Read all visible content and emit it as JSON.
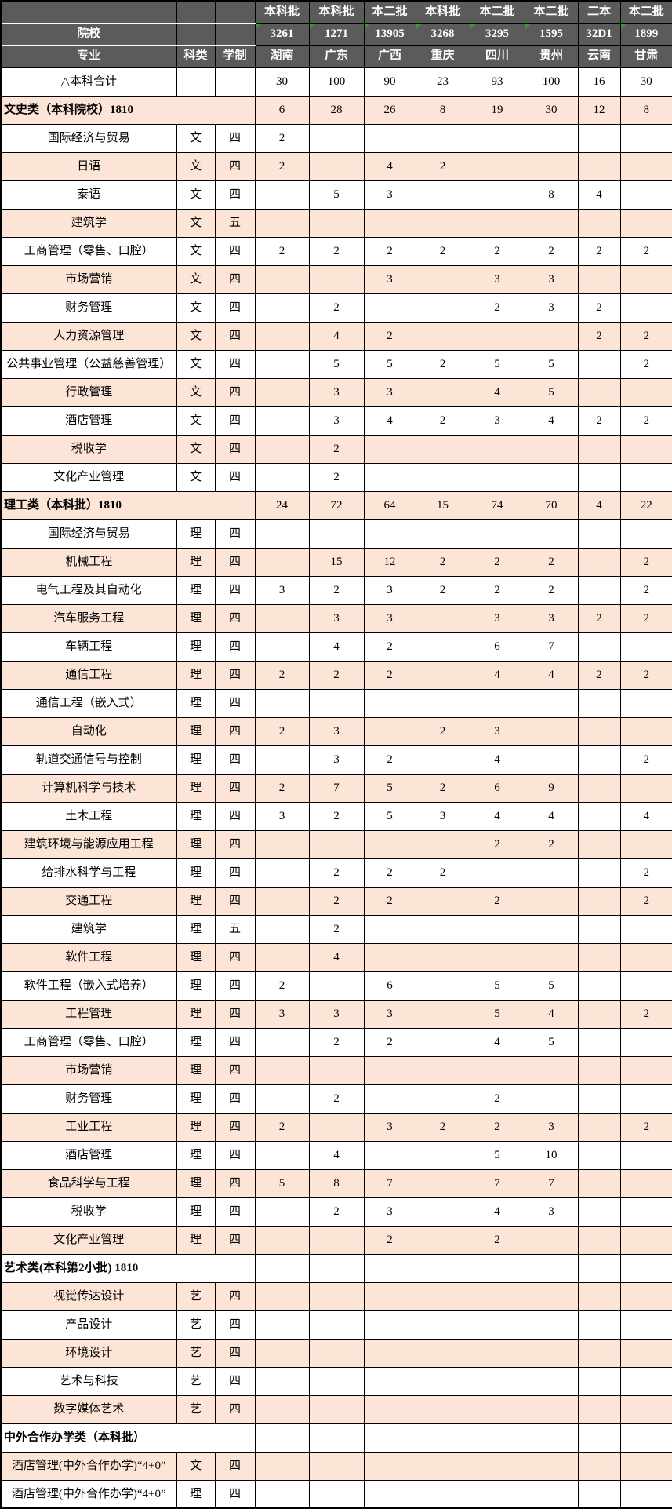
{
  "colors": {
    "header_bg": "#5b5b5b",
    "stripe_bg": "#fce4d6",
    "flag_green": "#33a02c",
    "border": "#000000"
  },
  "table": {
    "corner": {
      "college_label": "院校",
      "major_label": "专业",
      "category_label": "科类",
      "duration_label": "学制"
    },
    "columns": [
      {
        "batch": "本科批",
        "code": "3261",
        "province": "湖南",
        "flagged": true
      },
      {
        "batch": "本科批",
        "code": "1271",
        "province": "广东",
        "flagged": true
      },
      {
        "batch": "本二批",
        "code": "13905",
        "province": "广西",
        "flagged": true
      },
      {
        "batch": "本科批",
        "code": "3268",
        "province": "重庆",
        "flagged": true
      },
      {
        "batch": "本二批",
        "code": "3295",
        "province": "四川",
        "flagged": true
      },
      {
        "batch": "本二批",
        "code": "1595",
        "province": "贵州",
        "flagged": true
      },
      {
        "batch": "二本",
        "code": "32D1",
        "province": "云南",
        "flagged": false
      },
      {
        "batch": "本二批",
        "code": "1899",
        "province": "甘肃",
        "flagged": true
      }
    ],
    "rows": [
      {
        "t": "total",
        "label": "△本科合计",
        "v": [
          "30",
          "100",
          "90",
          "23",
          "93",
          "100",
          "16",
          "30"
        ]
      },
      {
        "t": "section",
        "label": "文史类（本科院校）1810",
        "v": [
          "6",
          "28",
          "26",
          "8",
          "19",
          "30",
          "12",
          "8"
        ]
      },
      {
        "t": "data",
        "label": "国际经济与贸易",
        "cat": "文",
        "dur": "四",
        "v": [
          "2",
          "",
          "",
          "",
          "",
          "",
          "",
          ""
        ]
      },
      {
        "t": "data",
        "label": "日语",
        "cat": "文",
        "dur": "四",
        "v": [
          "2",
          "",
          "4",
          "2",
          "",
          "",
          "",
          ""
        ]
      },
      {
        "t": "data",
        "label": "泰语",
        "cat": "文",
        "dur": "四",
        "v": [
          "",
          "5",
          "3",
          "",
          "",
          "8",
          "4",
          ""
        ]
      },
      {
        "t": "data",
        "label": "建筑学",
        "cat": "文",
        "dur": "五",
        "v": [
          "",
          "",
          "",
          "",
          "",
          "",
          "",
          ""
        ]
      },
      {
        "t": "data",
        "label": "工商管理（零售、口腔）",
        "cat": "文",
        "dur": "四",
        "v": [
          "2",
          "2",
          "2",
          "2",
          "2",
          "2",
          "2",
          "2"
        ]
      },
      {
        "t": "data",
        "label": "市场营销",
        "cat": "文",
        "dur": "四",
        "v": [
          "",
          "",
          "3",
          "",
          "3",
          "3",
          "",
          ""
        ]
      },
      {
        "t": "data",
        "label": "财务管理",
        "cat": "文",
        "dur": "四",
        "v": [
          "",
          "2",
          "",
          "",
          "2",
          "3",
          "2",
          ""
        ]
      },
      {
        "t": "data",
        "label": "人力资源管理",
        "cat": "文",
        "dur": "四",
        "v": [
          "",
          "4",
          "2",
          "",
          "",
          "",
          "2",
          "2"
        ]
      },
      {
        "t": "data",
        "label": "公共事业管理（公益慈善管理）",
        "cat": "文",
        "dur": "四",
        "v": [
          "",
          "5",
          "5",
          "2",
          "5",
          "5",
          "",
          "2"
        ]
      },
      {
        "t": "data",
        "label": "行政管理",
        "cat": "文",
        "dur": "四",
        "v": [
          "",
          "3",
          "3",
          "",
          "4",
          "5",
          "",
          ""
        ]
      },
      {
        "t": "data",
        "label": "酒店管理",
        "cat": "文",
        "dur": "四",
        "v": [
          "",
          "3",
          "4",
          "2",
          "3",
          "4",
          "2",
          "2"
        ]
      },
      {
        "t": "data",
        "label": "税收学",
        "cat": "文",
        "dur": "四",
        "v": [
          "",
          "2",
          "",
          "",
          "",
          "",
          "",
          ""
        ]
      },
      {
        "t": "data",
        "label": "文化产业管理",
        "cat": "文",
        "dur": "四",
        "v": [
          "",
          "2",
          "",
          "",
          "",
          "",
          "",
          ""
        ]
      },
      {
        "t": "section",
        "label": "理工类（本科批）1810",
        "v": [
          "24",
          "72",
          "64",
          "15",
          "74",
          "70",
          "4",
          "22"
        ]
      },
      {
        "t": "data",
        "label": "国际经济与贸易",
        "cat": "理",
        "dur": "四",
        "v": [
          "",
          "",
          "",
          "",
          "",
          "",
          "",
          ""
        ]
      },
      {
        "t": "data",
        "label": "机械工程",
        "cat": "理",
        "dur": "四",
        "v": [
          "",
          "15",
          "12",
          "2",
          "2",
          "2",
          "",
          "2"
        ]
      },
      {
        "t": "data",
        "label": "电气工程及其自动化",
        "cat": "理",
        "dur": "四",
        "v": [
          "3",
          "2",
          "3",
          "2",
          "2",
          "2",
          "",
          "2"
        ]
      },
      {
        "t": "data",
        "label": "汽车服务工程",
        "cat": "理",
        "dur": "四",
        "v": [
          "",
          "3",
          "3",
          "",
          "3",
          "3",
          "2",
          "2"
        ]
      },
      {
        "t": "data",
        "label": "车辆工程",
        "cat": "理",
        "dur": "四",
        "v": [
          "",
          "4",
          "2",
          "",
          "6",
          "7",
          "",
          ""
        ]
      },
      {
        "t": "data",
        "label": "通信工程",
        "cat": "理",
        "dur": "四",
        "v": [
          "2",
          "2",
          "2",
          "",
          "4",
          "4",
          "2",
          "2"
        ]
      },
      {
        "t": "data",
        "label": "通信工程（嵌入式）",
        "cat": "理",
        "dur": "四",
        "v": [
          "",
          "",
          "",
          "",
          "",
          "",
          "",
          ""
        ]
      },
      {
        "t": "data",
        "label": "自动化",
        "cat": "理",
        "dur": "四",
        "v": [
          "2",
          "3",
          "",
          "2",
          "3",
          "",
          "",
          ""
        ]
      },
      {
        "t": "data",
        "label": "轨道交通信号与控制",
        "cat": "理",
        "dur": "四",
        "v": [
          "",
          "3",
          "2",
          "",
          "4",
          "",
          "",
          "2"
        ]
      },
      {
        "t": "data",
        "label": "计算机科学与技术",
        "cat": "理",
        "dur": "四",
        "v": [
          "2",
          "7",
          "5",
          "2",
          "6",
          "9",
          "",
          ""
        ]
      },
      {
        "t": "data",
        "label": "土木工程",
        "cat": "理",
        "dur": "四",
        "v": [
          "3",
          "2",
          "5",
          "3",
          "4",
          "4",
          "",
          "4"
        ]
      },
      {
        "t": "data",
        "label": "建筑环境与能源应用工程",
        "cat": "理",
        "dur": "四",
        "v": [
          "",
          "",
          "",
          "",
          "2",
          "2",
          "",
          ""
        ]
      },
      {
        "t": "data",
        "label": "给排水科学与工程",
        "cat": "理",
        "dur": "四",
        "v": [
          "",
          "2",
          "2",
          "2",
          "",
          "",
          "",
          "2"
        ]
      },
      {
        "t": "data",
        "label": "交通工程",
        "cat": "理",
        "dur": "四",
        "v": [
          "",
          "2",
          "2",
          "",
          "2",
          "",
          "",
          "2"
        ]
      },
      {
        "t": "data",
        "label": "建筑学",
        "cat": "理",
        "dur": "五",
        "v": [
          "",
          "2",
          "",
          "",
          "",
          "",
          "",
          ""
        ]
      },
      {
        "t": "data",
        "label": "软件工程",
        "cat": "理",
        "dur": "四",
        "v": [
          "",
          "4",
          "",
          "",
          "",
          "",
          "",
          ""
        ]
      },
      {
        "t": "data",
        "label": "软件工程（嵌入式培养）",
        "cat": "理",
        "dur": "四",
        "v": [
          "2",
          "",
          "6",
          "",
          "5",
          "5",
          "",
          ""
        ]
      },
      {
        "t": "data",
        "label": "工程管理",
        "cat": "理",
        "dur": "四",
        "v": [
          "3",
          "3",
          "3",
          "",
          "5",
          "4",
          "",
          "2"
        ]
      },
      {
        "t": "data",
        "label": "工商管理（零售、口腔）",
        "cat": "理",
        "dur": "四",
        "v": [
          "",
          "2",
          "2",
          "",
          "4",
          "5",
          "",
          ""
        ]
      },
      {
        "t": "data",
        "label": "市场营销",
        "cat": "理",
        "dur": "四",
        "v": [
          "",
          "",
          "",
          "",
          "",
          "",
          "",
          ""
        ]
      },
      {
        "t": "data",
        "label": "财务管理",
        "cat": "理",
        "dur": "四",
        "v": [
          "",
          "2",
          "",
          "",
          "2",
          "",
          "",
          ""
        ]
      },
      {
        "t": "data",
        "label": "工业工程",
        "cat": "理",
        "dur": "四",
        "v": [
          "2",
          "",
          "3",
          "2",
          "2",
          "3",
          "",
          "2"
        ]
      },
      {
        "t": "data",
        "label": "酒店管理",
        "cat": "理",
        "dur": "四",
        "v": [
          "",
          "4",
          "",
          "",
          "5",
          "10",
          "",
          ""
        ]
      },
      {
        "t": "data",
        "label": "食品科学与工程",
        "cat": "理",
        "dur": "四",
        "v": [
          "5",
          "8",
          "7",
          "",
          "7",
          "7",
          "",
          ""
        ]
      },
      {
        "t": "data",
        "label": "税收学",
        "cat": "理",
        "dur": "四",
        "v": [
          "",
          "2",
          "3",
          "",
          "4",
          "3",
          "",
          ""
        ]
      },
      {
        "t": "data",
        "label": "文化产业管理",
        "cat": "理",
        "dur": "四",
        "v": [
          "",
          "",
          "2",
          "",
          "2",
          "",
          "",
          ""
        ]
      },
      {
        "t": "section",
        "label": "艺术类(本科第2小批) 1810",
        "v": [
          "",
          "",
          "",
          "",
          "",
          "",
          "",
          ""
        ]
      },
      {
        "t": "data",
        "label": "视觉传达设计",
        "cat": "艺",
        "dur": "四",
        "v": [
          "",
          "",
          "",
          "",
          "",
          "",
          "",
          ""
        ]
      },
      {
        "t": "data",
        "label": "产品设计",
        "cat": "艺",
        "dur": "四",
        "v": [
          "",
          "",
          "",
          "",
          "",
          "",
          "",
          ""
        ]
      },
      {
        "t": "data",
        "label": "环境设计",
        "cat": "艺",
        "dur": "四",
        "v": [
          "",
          "",
          "",
          "",
          "",
          "",
          "",
          ""
        ]
      },
      {
        "t": "data",
        "label": "艺术与科技",
        "cat": "艺",
        "dur": "四",
        "v": [
          "",
          "",
          "",
          "",
          "",
          "",
          "",
          ""
        ]
      },
      {
        "t": "data",
        "label": "数字媒体艺术",
        "cat": "艺",
        "dur": "四",
        "v": [
          "",
          "",
          "",
          "",
          "",
          "",
          "",
          ""
        ]
      },
      {
        "t": "section",
        "label": "中外合作办学类（本科批）",
        "v": [
          "",
          "",
          "",
          "",
          "",
          "",
          "",
          ""
        ]
      },
      {
        "t": "data",
        "label": "酒店管理(中外合作办学)“4+0”",
        "cat": "文",
        "dur": "四",
        "v": [
          "",
          "",
          "",
          "",
          "",
          "",
          "",
          ""
        ]
      },
      {
        "t": "data",
        "label": "酒店管理(中外合作办学)“4+0”",
        "cat": "理",
        "dur": "四",
        "v": [
          "",
          "",
          "",
          "",
          "",
          "",
          "",
          ""
        ]
      }
    ]
  }
}
